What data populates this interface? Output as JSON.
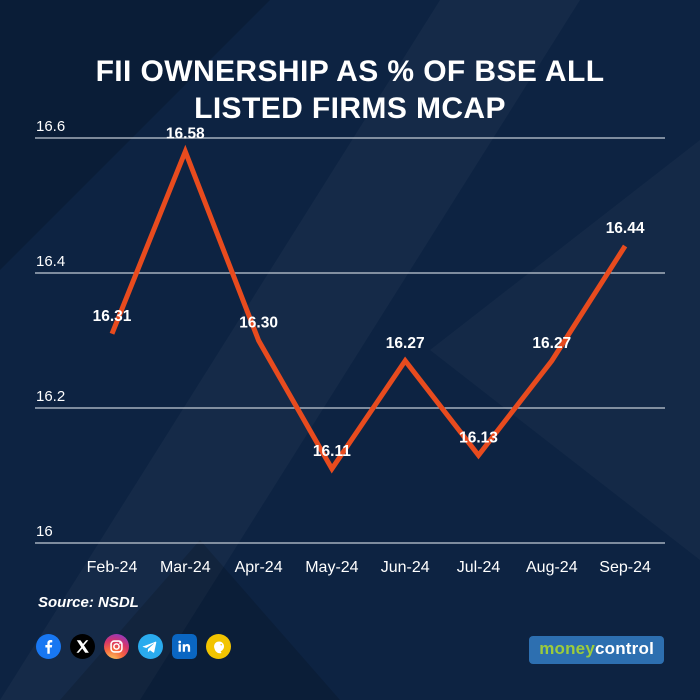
{
  "title_lines": [
    "FII OWNERSHIP AS % OF BSE ALL",
    "LISTED FIRMS MCAP"
  ],
  "chart_data": {
    "type": "line",
    "title": "FII OWNERSHIP AS % OF BSE ALL LISTED FIRMS MCAP",
    "categories": [
      "Feb-24",
      "Mar-24",
      "Apr-24",
      "May-24",
      "Jun-24",
      "Jul-24",
      "Aug-24",
      "Sep-24"
    ],
    "values": [
      16.31,
      16.58,
      16.3,
      16.11,
      16.27,
      16.13,
      16.27,
      16.44
    ],
    "value_labels": [
      "16.31",
      "16.58",
      "16.30",
      "16.11",
      "16.27",
      "16.13",
      "16.27",
      "16.44"
    ],
    "xlabel": "",
    "ylabel": "",
    "y_ticks": [
      16.6,
      16.4,
      16.2,
      16
    ],
    "y_tick_labels": [
      "16.6",
      "16.4",
      "16.2",
      "16"
    ],
    "ylim": [
      16,
      16.65
    ],
    "grid": "horizontal",
    "legend_position": "none",
    "line_color": "#e84b1e",
    "gridline_color": "#e3e9f0",
    "label_color": "#ffffff",
    "background_color": "#0d2342"
  },
  "source_label": "Source: NSDL",
  "social_icons": [
    "facebook",
    "x-twitter",
    "instagram",
    "telegram",
    "linkedin",
    "koo"
  ],
  "brand": {
    "money": "money",
    "control": "control",
    "money_color": "#9ccc3c",
    "control_color": "#ffffff",
    "bg_color": "#2d6fb0"
  }
}
